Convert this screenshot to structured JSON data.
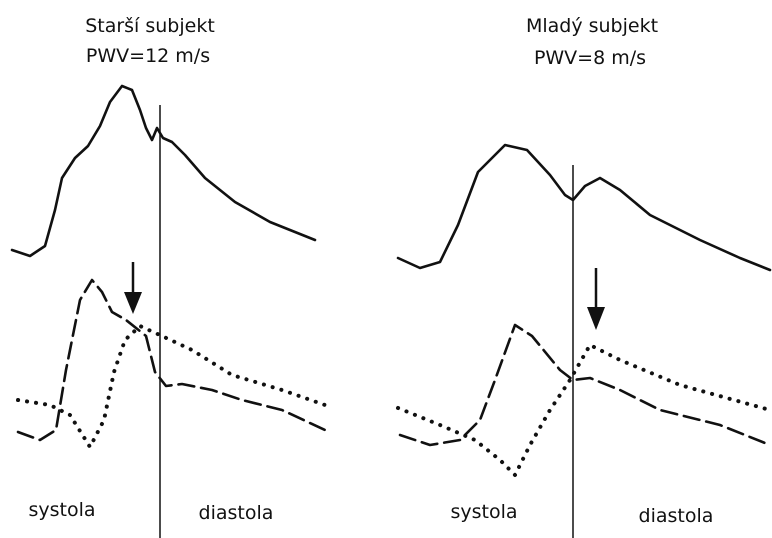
{
  "panels": [
    {
      "title": [
        "Starší subjekt",
        "PWV=12 m/s"
      ],
      "left_label": "systola",
      "right_label": "diastola"
    },
    {
      "title": [
        "Mladý subjekt",
        "PWV=8 m/s"
      ],
      "left_label": "systola",
      "right_label": "diastola"
    }
  ]
}
